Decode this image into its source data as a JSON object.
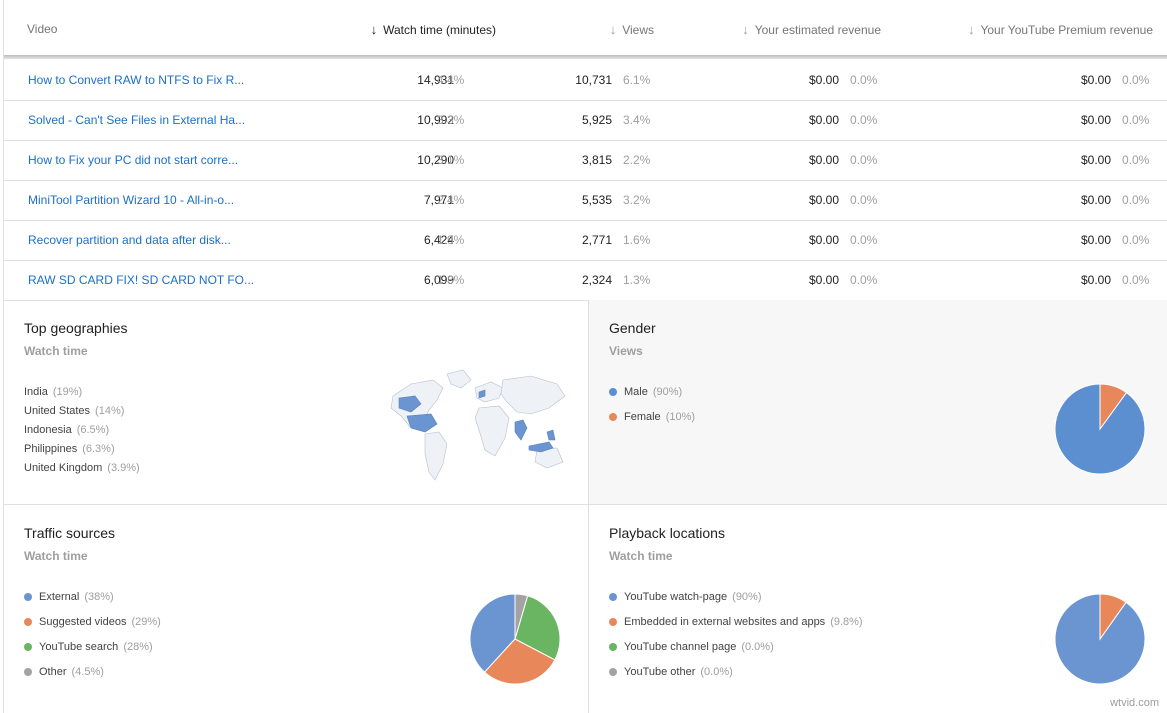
{
  "table": {
    "headers": [
      {
        "label": "Video",
        "sorted": false,
        "arrow": ""
      },
      {
        "label": "Watch time (minutes)",
        "sorted": true,
        "arrow": "↓"
      },
      {
        "label": "Views",
        "sorted": false,
        "arrow": "↓"
      },
      {
        "label": "Your estimated revenue",
        "sorted": false,
        "arrow": "↓"
      },
      {
        "label": "Your YouTube Premium revenue",
        "sorted": false,
        "arrow": "↓"
      }
    ],
    "rows": [
      {
        "title": "How to Convert RAW to NTFS to Fix R...",
        "watch": "14,931",
        "watch_pct": "4.4%",
        "views": "10,731",
        "views_pct": "6.1%",
        "rev": "$0.00",
        "rev_pct": "0.0%",
        "prem": "$0.00",
        "prem_pct": "0.0%"
      },
      {
        "title": "Solved - Can't See Files in External Ha...",
        "watch": "10,992",
        "watch_pct": "3.3%",
        "views": "5,925",
        "views_pct": "3.4%",
        "rev": "$0.00",
        "rev_pct": "0.0%",
        "prem": "$0.00",
        "prem_pct": "0.0%"
      },
      {
        "title": "How to Fix your PC did not start corre...",
        "watch": "10,290",
        "watch_pct": "3.1%",
        "views": "3,815",
        "views_pct": "2.2%",
        "rev": "$0.00",
        "rev_pct": "0.0%",
        "prem": "$0.00",
        "prem_pct": "0.0%"
      },
      {
        "title": "MiniTool Partition Wizard 10 - All-in-o...",
        "watch": "7,971",
        "watch_pct": "2.4%",
        "views": "5,535",
        "views_pct": "3.2%",
        "rev": "$0.00",
        "rev_pct": "0.0%",
        "prem": "$0.00",
        "prem_pct": "0.0%"
      },
      {
        "title": "Recover partition and data after disk...",
        "watch": "6,424",
        "watch_pct": "1.9%",
        "views": "2,771",
        "views_pct": "1.6%",
        "rev": "$0.00",
        "rev_pct": "0.0%",
        "prem": "$0.00",
        "prem_pct": "0.0%"
      },
      {
        "title": "RAW SD CARD FIX! SD CARD NOT FO...",
        "watch": "6,099",
        "watch_pct": "1.8%",
        "views": "2,324",
        "views_pct": "1.3%",
        "rev": "$0.00",
        "rev_pct": "0.0%",
        "prem": "$0.00",
        "prem_pct": "0.0%"
      }
    ]
  },
  "geo": {
    "title": "Top geographies",
    "subtitle": "Watch time",
    "items": [
      {
        "label": "India",
        "value": "(19%)"
      },
      {
        "label": "United States",
        "value": "(14%)"
      },
      {
        "label": "Indonesia",
        "value": "(6.5%)"
      },
      {
        "label": "Philippines",
        "value": "(6.3%)"
      },
      {
        "label": "United Kingdom",
        "value": "(3.9%)"
      }
    ],
    "map_icon": "world-map-icon"
  },
  "gender": {
    "title": "Gender",
    "subtitle": "Views",
    "items": [
      {
        "label": "Male",
        "value": "(90%)",
        "pct": 90,
        "color": "#5b8fcf"
      },
      {
        "label": "Female",
        "value": "(10%)",
        "pct": 10,
        "color": "#e8885a"
      }
    ]
  },
  "traffic": {
    "title": "Traffic sources",
    "subtitle": "Watch time",
    "items": [
      {
        "label": "External",
        "value": "(38%)",
        "pct": 38,
        "color": "#6b95d1"
      },
      {
        "label": "Suggested videos",
        "value": "(29%)",
        "pct": 29,
        "color": "#e8885a"
      },
      {
        "label": "YouTube search",
        "value": "(28%)",
        "pct": 28,
        "color": "#6ab561"
      },
      {
        "label": "Other",
        "value": "(4.5%)",
        "pct": 4.5,
        "color": "#a3a3a3"
      }
    ]
  },
  "playback": {
    "title": "Playback locations",
    "subtitle": "Watch time",
    "items": [
      {
        "label": "YouTube watch-page",
        "value": "(90%)",
        "pct": 90,
        "color": "#6b95d1"
      },
      {
        "label": "Embedded in external websites and apps",
        "value": "(9.8%)",
        "pct": 9.8,
        "color": "#e8885a"
      },
      {
        "label": "YouTube channel page",
        "value": "(0.0%)",
        "pct": 0,
        "color": "#6ab561"
      },
      {
        "label": "YouTube other",
        "value": "(0.0%)",
        "pct": 0,
        "color": "#a3a3a3"
      }
    ]
  },
  "watermark": "wtvid.com"
}
